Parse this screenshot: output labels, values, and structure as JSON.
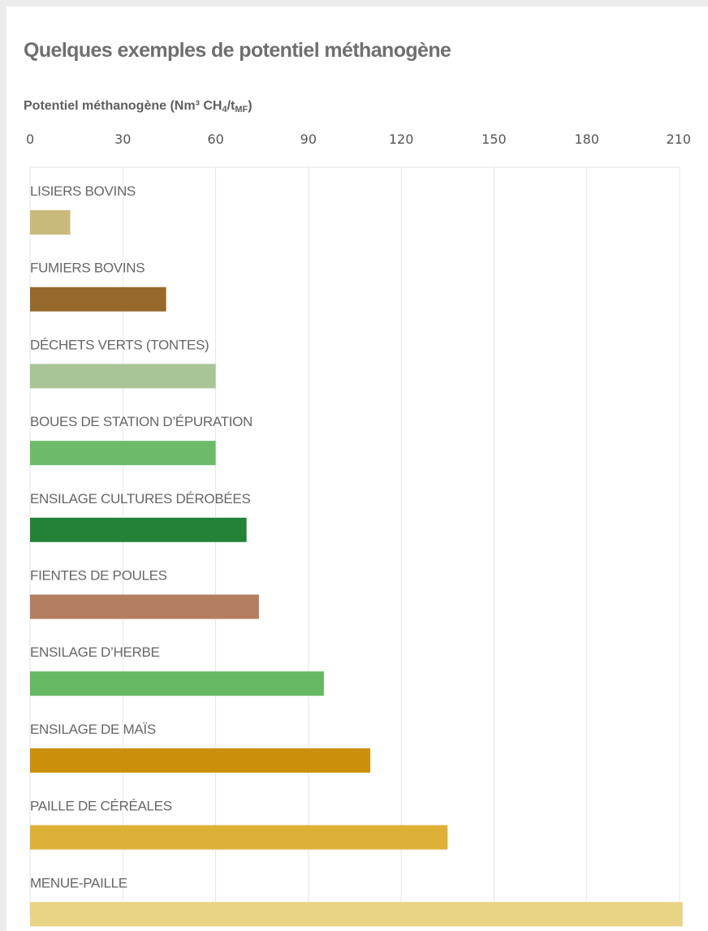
{
  "title": "Quelques exemples de potentiel méthanogène",
  "chart_data": {
    "type": "bar",
    "orientation": "horizontal",
    "title": "Quelques exemples de potentiel méthanogène",
    "xlabel": "Potentiel méthanogène (Nm³ CH4/tMF)",
    "xlabel_parts": {
      "main": "Potentiel méthanogène (Nm³ CH",
      "sub1": "4",
      "mid": "/t",
      "sub2": "MF",
      "end": ")"
    },
    "xlim": [
      0,
      210
    ],
    "xticks": [
      "0",
      "30",
      "60",
      "90",
      "120",
      "150",
      "180",
      "210"
    ],
    "axis_position": "top",
    "grid": true,
    "categories": [
      "LISIERS BOVINS",
      "FUMIERS BOVINS",
      "DÉCHETS VERTS (TONTES)",
      "BOUES DE STATION D’ÉPURATION",
      "ENSILAGE CULTURES DÉROBÉES",
      "FIENTES DE POULES",
      "ENSILAGE D’HERBE",
      "ENSILAGE DE MAÏS",
      "PAILLE DE CÉRÉALES",
      "MENUE-PAILLE"
    ],
    "values": [
      13,
      44,
      60,
      60,
      70,
      74,
      95,
      110,
      135,
      211
    ],
    "colors": [
      "#c9ba7b",
      "#966a2b",
      "#a7c596",
      "#6dbb68",
      "#238238",
      "#b47e60",
      "#66b862",
      "#cc8f0c",
      "#ddb037",
      "#e8d484"
    ]
  }
}
